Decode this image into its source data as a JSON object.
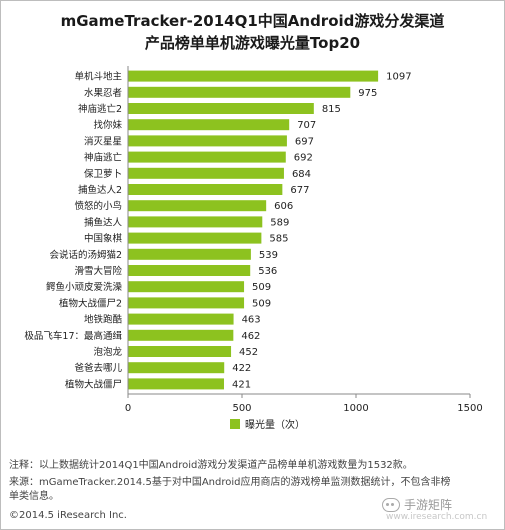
{
  "header": {
    "title_line1": "mGameTracker-2014Q1中国Android游戏分发渠道",
    "title_line2": "产品榜单单机游戏曝光量Top20"
  },
  "chart_data": {
    "type": "bar",
    "orientation": "horizontal",
    "categories": [
      "单机斗地主",
      "水果忍者",
      "神庙逃亡2",
      "找你妹",
      "消灭星星",
      "神庙逃亡",
      "保卫萝卜",
      "捕鱼达人2",
      "愤怒的小鸟",
      "捕鱼达人",
      "中国象棋",
      "会说话的汤姆猫2",
      "滑雪大冒险",
      "鳄鱼小顽皮爱洗澡",
      "植物大战僵尸2",
      "地铁跑酷",
      "极品飞车17：最高通缉",
      "泡泡龙",
      "爸爸去哪儿",
      "植物大战僵尸"
    ],
    "series": [
      {
        "name": "曝光量（次）",
        "values": [
          1097,
          975,
          815,
          707,
          697,
          692,
          684,
          677,
          606,
          589,
          585,
          539,
          536,
          509,
          509,
          463,
          462,
          452,
          422,
          421
        ]
      }
    ],
    "xticks": [
      "0",
      "500",
      "1000",
      "1500"
    ],
    "xlim": [
      0,
      1500
    ],
    "bar_color": "#8dc21f",
    "grid": false,
    "legend_position": "bottom"
  },
  "notes": {
    "line1": "注释：以上数据统计2014Q1中国Android游戏分发渠道产品榜单单机游戏数量为1532款。",
    "line2": "来源：mGameTracker.2014.5基于对中国Android应用商店的游戏榜单监测数据统计，不包含非榜",
    "line3": "单类信息。"
  },
  "footer": {
    "copyright": "©2014.5 iResearch Inc.",
    "watermark": "手游矩阵",
    "watermark_site": "www.iresearch.com.cn"
  }
}
